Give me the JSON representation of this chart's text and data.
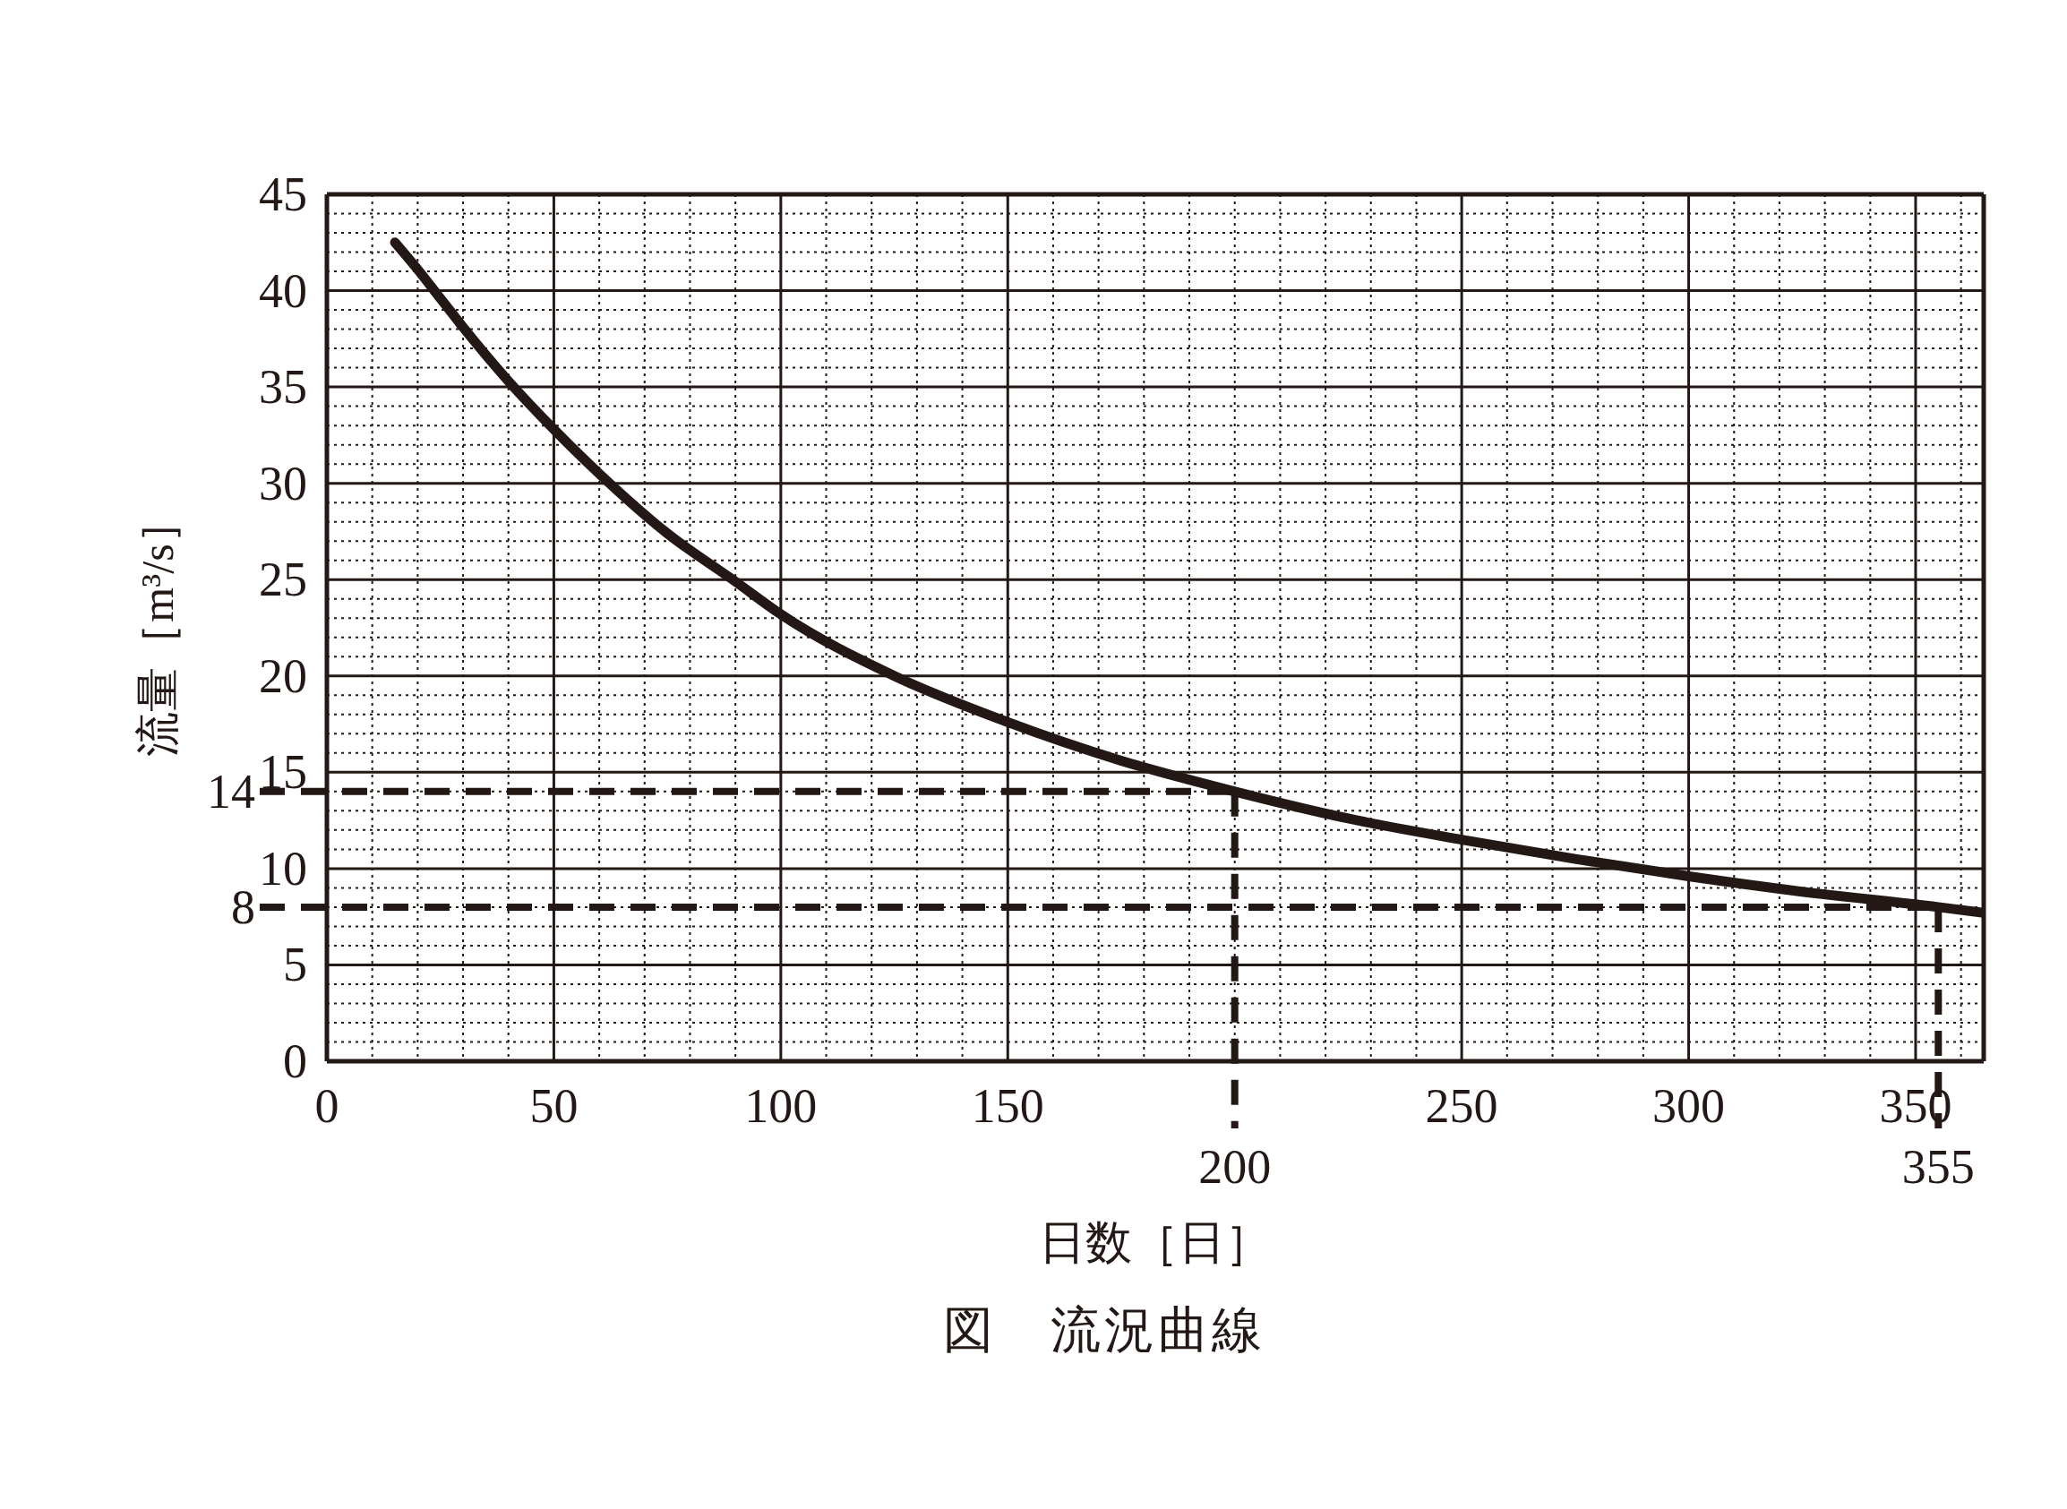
{
  "chart_data": {
    "type": "line",
    "title": "図　流況曲線",
    "xlabel": "日数［日］",
    "ylabel": "流量［m³/s］",
    "x": [
      15,
      20,
      25,
      30,
      40,
      50,
      60,
      75,
      90,
      100,
      125,
      150,
      175,
      200,
      225,
      250,
      275,
      300,
      325,
      355,
      365
    ],
    "series": [
      {
        "color": "#231815",
        "values": [
          42.5,
          41.1,
          39.6,
          38.1,
          35.3,
          32.8,
          30.5,
          27.4,
          24.9,
          23.2,
          20.0,
          17.6,
          15.6,
          14.0,
          12.6,
          11.5,
          10.5,
          9.6,
          8.8,
          8.0,
          7.7
        ]
      }
    ],
    "xlim": [
      0,
      365
    ],
    "xticks": [
      0,
      {
        "value": 10,
        "label": null
      },
      {
        "value": 20,
        "label": null
      },
      {
        "value": 30,
        "label": null
      },
      {
        "value": 40,
        "label": null
      },
      50,
      {
        "value": 60,
        "label": null
      },
      {
        "value": 70,
        "label": null
      },
      {
        "value": 80,
        "label": null
      },
      {
        "value": 90,
        "label": null
      },
      100,
      {
        "value": 110,
        "label": null
      },
      {
        "value": 120,
        "label": null
      },
      {
        "value": 130,
        "label": null
      },
      {
        "value": 140,
        "label": null
      },
      150,
      {
        "value": 160,
        "label": null
      },
      {
        "value": 170,
        "label": null
      },
      {
        "value": 180,
        "label": null
      },
      {
        "value": 190,
        "label": null
      },
      {
        "value": 200,
        "label": null
      },
      {
        "value": 210,
        "label": null
      },
      {
        "value": 220,
        "label": null
      },
      {
        "value": 230,
        "label": null
      },
      {
        "value": 240,
        "label": null
      },
      250,
      {
        "value": 260,
        "label": null
      },
      {
        "value": 270,
        "label": null
      },
      {
        "value": 280,
        "label": null
      },
      {
        "value": 290,
        "label": null
      },
      300,
      {
        "value": 310,
        "label": null
      },
      {
        "value": 320,
        "label": null
      },
      {
        "value": 330,
        "label": null
      },
      {
        "value": 340,
        "label": null
      },
      350,
      {
        "value": 360,
        "label": null
      }
    ],
    "ylim": [
      0,
      45
    ],
    "yticks": [
      0,
      {
        "value": 1,
        "label": null
      },
      {
        "value": 2,
        "label": null
      },
      {
        "value": 3,
        "label": null
      },
      {
        "value": 4,
        "label": null
      },
      5,
      {
        "value": 6,
        "label": null
      },
      {
        "value": 7,
        "label": null
      },
      {
        "value": 8,
        "label": null
      },
      {
        "value": 9,
        "label": null
      },
      10,
      {
        "value": 11,
        "label": null
      },
      {
        "value": 12,
        "label": null
      },
      {
        "value": 13,
        "label": null
      },
      {
        "value": 14,
        "label": null
      },
      15,
      {
        "value": 16,
        "label": null
      },
      {
        "value": 17,
        "label": null
      },
      {
        "value": 18,
        "label": null
      },
      {
        "value": 19,
        "label": null
      },
      20,
      {
        "value": 21,
        "label": null
      },
      {
        "value": 22,
        "label": null
      },
      {
        "value": 23,
        "label": null
      },
      {
        "value": 24,
        "label": null
      },
      25,
      {
        "value": 26,
        "label": null
      },
      {
        "value": 27,
        "label": null
      },
      {
        "value": 28,
        "label": null
      },
      {
        "value": 29,
        "label": null
      },
      30,
      {
        "value": 31,
        "label": null
      },
      {
        "value": 32,
        "label": null
      },
      {
        "value": 33,
        "label": null
      },
      {
        "value": 34,
        "label": null
      },
      35,
      {
        "value": 36,
        "label": null
      },
      {
        "value": 37,
        "label": null
      },
      {
        "value": 38,
        "label": null
      },
      {
        "value": 39,
        "label": null
      },
      40,
      {
        "value": 41,
        "label": null
      },
      {
        "value": 42,
        "label": null
      },
      {
        "value": 43,
        "label": null
      },
      {
        "value": 44,
        "label": null
      },
      45
    ],
    "grid": true,
    "marker": "none",
    "line_style": "solid",
    "ref_lines": [
      {
        "axis": "y",
        "value": 14,
        "label": "14",
        "color": "#231815",
        "line_style": "dashed"
      },
      {
        "axis": "y",
        "value": 8,
        "label": "8",
        "color": "#231815",
        "line_style": "dashed"
      },
      {
        "axis": "x",
        "value": 200,
        "label": "200",
        "color": "#231815",
        "line_style": "dashed"
      },
      {
        "axis": "x",
        "value": 355,
        "label": "355",
        "color": "#231815",
        "line_style": "dashed"
      }
    ]
  }
}
